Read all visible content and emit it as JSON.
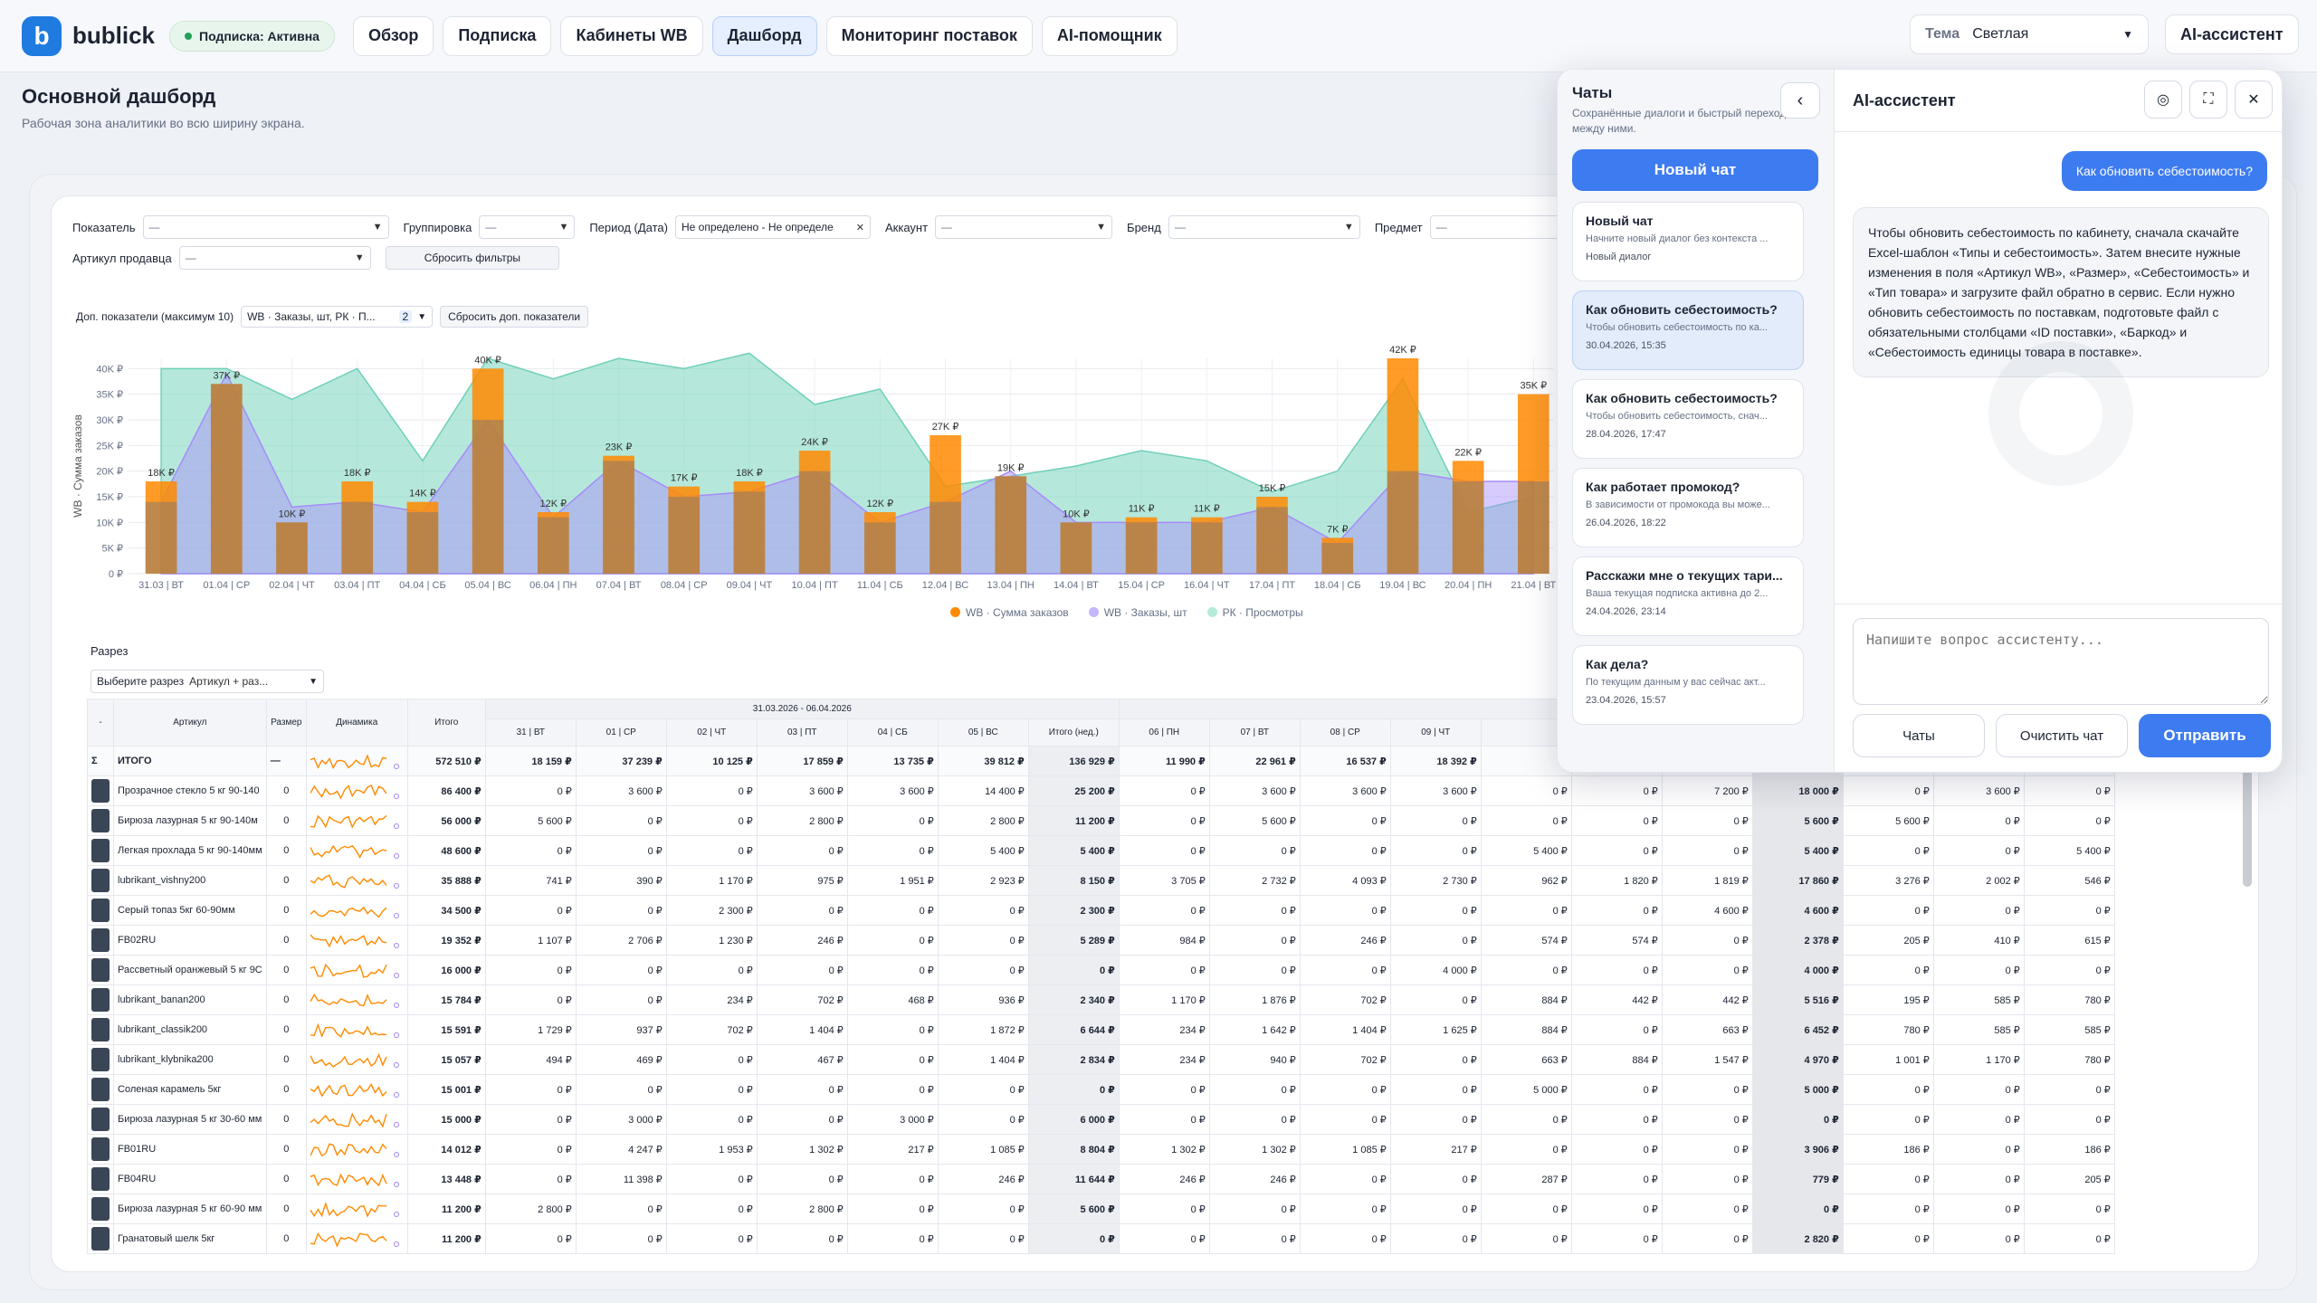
{
  "nav": {
    "brand": "bublick",
    "subscription": "Подписка: Активна",
    "items": [
      "Обзор",
      "Подписка",
      "Кабинеты WB",
      "Дашборд",
      "Мониторинг поставок",
      "AI-помощник"
    ],
    "theme_label": "Тема",
    "theme_value": "Светлая",
    "ai_button": "AI-ассистент"
  },
  "page": {
    "title": "Основной дашборд",
    "subtitle": "Рабочая зона аналитики во всю ширину экрана."
  },
  "filters": {
    "indicator": "Показатель",
    "grouping": "Группировка",
    "period": "Период (Дата)",
    "period_value": "Не определено - Не определе",
    "account": "Аккаунт",
    "brand": "Бренд",
    "subject": "Предмет",
    "seller_article": "Артикул продавца",
    "placeholder": "—",
    "reset": "Сбросить фильтры"
  },
  "extra": {
    "label": "Доп. показатели (максимум 10)",
    "value": "WB · Заказы, шт, РК · П...",
    "count": "2",
    "reset": "Сбросить доп. показатели"
  },
  "chart_data": {
    "type": "bar",
    "ylabel": "WB · Сумма заказов",
    "ylim": [
      0,
      42000
    ],
    "yticks": [
      "0 ₽",
      "5K ₽",
      "10K ₽",
      "15K ₽",
      "20K ₽",
      "25K ₽",
      "30K ₽",
      "35K ₽",
      "40K ₽"
    ],
    "categories": [
      "31.03 | ВТ",
      "01.04 | СР",
      "02.04 | ЧТ",
      "03.04 | ПТ",
      "04.04 | СБ",
      "05.04 | ВС",
      "06.04 | ПН",
      "07.04 | ВТ",
      "08.04 | СР",
      "09.04 | ЧТ",
      "10.04 | ПТ",
      "11.04 | СБ",
      "12.04 | ВС",
      "13.04 | ПН",
      "14.04 | ВТ",
      "15.04 | СР",
      "16.04 | ЧТ",
      "17.04 | ПТ",
      "18.04 | СБ",
      "19.04 | ВС",
      "20.04 | ПН",
      "21.04 | ВТ"
    ],
    "series": [
      {
        "name": "WB · Сумма заказов",
        "color": "#ff8a00",
        "values": [
          18000,
          37000,
          10000,
          18000,
          14000,
          40000,
          12000,
          23000,
          17000,
          18000,
          24000,
          12000,
          27000,
          19000,
          10000,
          11000,
          11000,
          15000,
          7000,
          42000,
          22000,
          35000
        ]
      },
      {
        "name": "WB · Заказы, шт",
        "color": "#a78bfa",
        "values": [
          14000,
          39000,
          13000,
          14000,
          12000,
          30000,
          11000,
          22000,
          15000,
          16000,
          20000,
          10000,
          14000,
          20000,
          10000,
          10000,
          10000,
          13000,
          6000,
          20000,
          18000,
          18000
        ]
      },
      {
        "name": "РК · Просмотры",
        "color": "#86dcc6",
        "values": [
          40000,
          40000,
          34000,
          40000,
          22000,
          42000,
          38000,
          42000,
          40000,
          43000,
          33000,
          36000,
          17000,
          19000,
          21000,
          24000,
          22000,
          16000,
          20000,
          38000,
          12000,
          15000
        ]
      }
    ],
    "data_labels": [
      "18K ₽",
      "37K ₽",
      "10K ₽",
      "18K ₽",
      "14K ₽",
      "40K ₽",
      "12K ₽",
      "23K ₽",
      "17K ₽",
      "18K ₽",
      "24K ₽",
      "12K ₽",
      "27K ₽",
      "19K ₽",
      "10K ₽",
      "11K ₽",
      "11K ₽",
      "15K ₽",
      "7K ₽",
      "42K ₽",
      "22K ₽",
      "35K ₽"
    ]
  },
  "razrez": {
    "label": "Разрез",
    "select": "Выберите разрез",
    "value": "Артикул + раз..."
  },
  "table": {
    "headers": [
      "-",
      "Артикул",
      "Размер",
      "Динамика",
      "Итого"
    ],
    "week1": "31.03.2026 - 06.04.2026",
    "week2": "06.04.2...",
    "days1": [
      "31 | ВТ",
      "01 | СР",
      "02 | ЧТ",
      "03 | ПТ",
      "04 | СБ",
      "05 | ВС"
    ],
    "mid_label": "Итого (нед.)",
    "days2": [
      "06 | ПН",
      "07 | ВТ",
      "08 | СР",
      "09 | ЧТ",
      "",
      "",
      ""
    ],
    "total_row": {
      "sigma": "Σ",
      "name": "ИТОГО",
      "size": "—",
      "total": "572 510 ₽",
      "d1": [
        "18 159 ₽",
        "37 239 ₽",
        "10 125 ₽",
        "17 859 ₽",
        "13 735 ₽",
        "39 812 ₽"
      ],
      "mid": "136 929 ₽",
      "d2": [
        "11 990 ₽",
        "22 961 ₽",
        "16 537 ₽",
        "18 392 ₽",
        "",
        "",
        ""
      ],
      "sum": "",
      "d3": [
        "",
        "",
        ""
      ]
    },
    "rows": [
      {
        "name": "Прозрачное стекло 5 кг 90-140",
        "size": "0",
        "total": "86 400 ₽",
        "d1": [
          "0 ₽",
          "3 600 ₽",
          "0 ₽",
          "3 600 ₽",
          "3 600 ₽",
          "14 400 ₽"
        ],
        "mid": "25 200 ₽",
        "d2": [
          "0 ₽",
          "3 600 ₽",
          "3 600 ₽",
          "3 600 ₽",
          "0 ₽",
          "0 ₽",
          "7 200 ₽"
        ],
        "sum": "18 000 ₽",
        "d3": [
          "0 ₽",
          "3 600 ₽",
          "0 ₽"
        ]
      },
      {
        "name": "Бирюза лазурная 5 кг 90-140м",
        "size": "0",
        "total": "56 000 ₽",
        "d1": [
          "5 600 ₽",
          "0 ₽",
          "0 ₽",
          "2 800 ₽",
          "0 ₽",
          "2 800 ₽"
        ],
        "mid": "11 200 ₽",
        "d2": [
          "0 ₽",
          "5 600 ₽",
          "0 ₽",
          "0 ₽",
          "0 ₽",
          "0 ₽",
          "0 ₽"
        ],
        "sum": "5 600 ₽",
        "d3": [
          "5 600 ₽",
          "0 ₽",
          "0 ₽"
        ]
      },
      {
        "name": "Легкая прохлада 5 кг 90-140мм",
        "size": "0",
        "total": "48 600 ₽",
        "d1": [
          "0 ₽",
          "0 ₽",
          "0 ₽",
          "0 ₽",
          "0 ₽",
          "5 400 ₽"
        ],
        "mid": "5 400 ₽",
        "d2": [
          "0 ₽",
          "0 ₽",
          "0 ₽",
          "0 ₽",
          "5 400 ₽",
          "0 ₽",
          "0 ₽"
        ],
        "sum": "5 400 ₽",
        "d3": [
          "0 ₽",
          "0 ₽",
          "5 400 ₽"
        ]
      },
      {
        "name": "lubrikant_vishny200",
        "size": "0",
        "total": "35 888 ₽",
        "d1": [
          "741 ₽",
          "390 ₽",
          "1 170 ₽",
          "975 ₽",
          "1 951 ₽",
          "2 923 ₽"
        ],
        "mid": "8 150 ₽",
        "d2": [
          "3 705 ₽",
          "2 732 ₽",
          "4 093 ₽",
          "2 730 ₽",
          "962 ₽",
          "1 820 ₽",
          "1 819 ₽"
        ],
        "sum": "17 860 ₽",
        "d3": [
          "3 276 ₽",
          "2 002 ₽",
          "546 ₽"
        ]
      },
      {
        "name": "Серый топаз 5кг 60-90мм",
        "size": "0",
        "total": "34 500 ₽",
        "d1": [
          "0 ₽",
          "0 ₽",
          "2 300 ₽",
          "0 ₽",
          "0 ₽",
          "0 ₽"
        ],
        "mid": "2 300 ₽",
        "d2": [
          "0 ₽",
          "0 ₽",
          "0 ₽",
          "0 ₽",
          "0 ₽",
          "0 ₽",
          "4 600 ₽"
        ],
        "sum": "4 600 ₽",
        "d3": [
          "0 ₽",
          "0 ₽",
          "0 ₽"
        ]
      },
      {
        "name": "FB02RU",
        "size": "0",
        "total": "19 352 ₽",
        "d1": [
          "1 107 ₽",
          "2 706 ₽",
          "1 230 ₽",
          "246 ₽",
          "0 ₽",
          "0 ₽"
        ],
        "mid": "5 289 ₽",
        "d2": [
          "984 ₽",
          "0 ₽",
          "246 ₽",
          "0 ₽",
          "574 ₽",
          "574 ₽",
          "0 ₽"
        ],
        "sum": "2 378 ₽",
        "d3": [
          "205 ₽",
          "410 ₽",
          "615 ₽"
        ]
      },
      {
        "name": "Рассветный оранжевый 5 кг 9С",
        "size": "0",
        "total": "16 000 ₽",
        "d1": [
          "0 ₽",
          "0 ₽",
          "0 ₽",
          "0 ₽",
          "0 ₽",
          "0 ₽"
        ],
        "mid": "0 ₽",
        "d2": [
          "0 ₽",
          "0 ₽",
          "0 ₽",
          "4 000 ₽",
          "0 ₽",
          "0 ₽",
          "0 ₽"
        ],
        "sum": "4 000 ₽",
        "d3": [
          "0 ₽",
          "0 ₽",
          "0 ₽"
        ]
      },
      {
        "name": "lubrikant_banan200",
        "size": "0",
        "total": "15 784 ₽",
        "d1": [
          "0 ₽",
          "0 ₽",
          "234 ₽",
          "702 ₽",
          "468 ₽",
          "936 ₽"
        ],
        "mid": "2 340 ₽",
        "d2": [
          "1 170 ₽",
          "1 876 ₽",
          "702 ₽",
          "0 ₽",
          "884 ₽",
          "442 ₽",
          "442 ₽"
        ],
        "sum": "5 516 ₽",
        "d3": [
          "195 ₽",
          "585 ₽",
          "780 ₽"
        ]
      },
      {
        "name": "lubrikant_classik200",
        "size": "0",
        "total": "15 591 ₽",
        "d1": [
          "1 729 ₽",
          "937 ₽",
          "702 ₽",
          "1 404 ₽",
          "0 ₽",
          "1 872 ₽"
        ],
        "mid": "6 644 ₽",
        "d2": [
          "234 ₽",
          "1 642 ₽",
          "1 404 ₽",
          "1 625 ₽",
          "884 ₽",
          "0 ₽",
          "663 ₽"
        ],
        "sum": "6 452 ₽",
        "d3": [
          "780 ₽",
          "585 ₽",
          "585 ₽"
        ]
      },
      {
        "name": "lubrikant_klybnika200",
        "size": "0",
        "total": "15 057 ₽",
        "d1": [
          "494 ₽",
          "469 ₽",
          "0 ₽",
          "467 ₽",
          "0 ₽",
          "1 404 ₽"
        ],
        "mid": "2 834 ₽",
        "d2": [
          "234 ₽",
          "940 ₽",
          "702 ₽",
          "0 ₽",
          "663 ₽",
          "884 ₽",
          "1 547 ₽"
        ],
        "sum": "4 970 ₽",
        "d3": [
          "1 001 ₽",
          "1 170 ₽",
          "780 ₽"
        ]
      },
      {
        "name": "Соленая карамель 5кг",
        "size": "0",
        "total": "15 001 ₽",
        "d1": [
          "0 ₽",
          "0 ₽",
          "0 ₽",
          "0 ₽",
          "0 ₽",
          "0 ₽"
        ],
        "mid": "0 ₽",
        "d2": [
          "0 ₽",
          "0 ₽",
          "0 ₽",
          "0 ₽",
          "5 000 ₽",
          "0 ₽",
          "0 ₽"
        ],
        "sum": "5 000 ₽",
        "d3": [
          "0 ₽",
          "0 ₽",
          "0 ₽"
        ]
      },
      {
        "name": "Бирюза лазурная 5 кг 30-60 мм",
        "size": "0",
        "total": "15 000 ₽",
        "d1": [
          "0 ₽",
          "3 000 ₽",
          "0 ₽",
          "0 ₽",
          "3 000 ₽",
          "0 ₽"
        ],
        "mid": "6 000 ₽",
        "d2": [
          "0 ₽",
          "0 ₽",
          "0 ₽",
          "0 ₽",
          "0 ₽",
          "0 ₽",
          "0 ₽"
        ],
        "sum": "0 ₽",
        "d3": [
          "0 ₽",
          "0 ₽",
          "0 ₽"
        ]
      },
      {
        "name": "FB01RU",
        "size": "0",
        "total": "14 012 ₽",
        "d1": [
          "0 ₽",
          "4 247 ₽",
          "1 953 ₽",
          "1 302 ₽",
          "217 ₽",
          "1 085 ₽"
        ],
        "mid": "8 804 ₽",
        "d2": [
          "1 302 ₽",
          "1 302 ₽",
          "1 085 ₽",
          "217 ₽",
          "0 ₽",
          "0 ₽",
          "0 ₽"
        ],
        "sum": "3 906 ₽",
        "d3": [
          "186 ₽",
          "0 ₽",
          "186 ₽"
        ]
      },
      {
        "name": "FB04RU",
        "size": "0",
        "total": "13 448 ₽",
        "d1": [
          "0 ₽",
          "11 398 ₽",
          "0 ₽",
          "0 ₽",
          "0 ₽",
          "246 ₽"
        ],
        "mid": "11 644 ₽",
        "d2": [
          "246 ₽",
          "246 ₽",
          "0 ₽",
          "0 ₽",
          "287 ₽",
          "0 ₽",
          "0 ₽"
        ],
        "sum": "779 ₽",
        "d3": [
          "0 ₽",
          "0 ₽",
          "205 ₽"
        ]
      },
      {
        "name": "Бирюза лазурная 5 кг 60-90 мм",
        "size": "0",
        "total": "11 200 ₽",
        "d1": [
          "2 800 ₽",
          "0 ₽",
          "0 ₽",
          "2 800 ₽",
          "0 ₽",
          "0 ₽"
        ],
        "mid": "5 600 ₽",
        "d2": [
          "0 ₽",
          "0 ₽",
          "0 ₽",
          "0 ₽",
          "0 ₽",
          "0 ₽",
          "0 ₽"
        ],
        "sum": "0 ₽",
        "d3": [
          "0 ₽",
          "0 ₽",
          "0 ₽"
        ]
      },
      {
        "name": "Гранатовый шелк 5кг",
        "size": "0",
        "total": "11 200 ₽",
        "d1": [
          "0 ₽",
          "0 ₽",
          "0 ₽",
          "0 ₽",
          "0 ₽",
          "0 ₽"
        ],
        "mid": "0 ₽",
        "d2": [
          "0 ₽",
          "0 ₽",
          "0 ₽",
          "0 ₽",
          "0 ₽",
          "0 ₽",
          "0 ₽"
        ],
        "sum": "2 820 ₽",
        "d3": [
          "0 ₽",
          "0 ₽",
          "0 ₽"
        ]
      }
    ]
  },
  "chats": {
    "title": "Чаты",
    "subtitle": "Сохранённые диалоги и быстрый переход между ними.",
    "new_chat": "Новый чат",
    "items": [
      {
        "title": "Новый чат",
        "preview": "Начните новый диалог без контекста ...",
        "date": "Новый диалог",
        "active": false
      },
      {
        "title": "Как обновить себестоимость?",
        "preview": "Чтобы обновить себестоимость по ка...",
        "date": "30.04.2026, 15:35",
        "active": true
      },
      {
        "title": "Как обновить себестоимость?",
        "preview": "Чтобы обновить себестоимость, снач...",
        "date": "28.04.2026, 17:47",
        "active": false
      },
      {
        "title": "Как работает промокод?",
        "preview": "В зависимости от промокода вы може...",
        "date": "26.04.2026, 18:22",
        "active": false
      },
      {
        "title": "Расскажи мне о текущих тари...",
        "preview": "Ваша текущая подписка активна до 2...",
        "date": "24.04.2026, 23:14",
        "active": false
      },
      {
        "title": "Как дела?",
        "preview": "По текущим данным у вас сейчас акт...",
        "date": "23.04.2026, 15:57",
        "active": false
      }
    ]
  },
  "assistant": {
    "title": "AI-ассистент",
    "user_message": "Как обновить себестоимость?",
    "reply": "Чтобы обновить себестоимость по кабинету, сначала скачайте Excel-шаблон «Типы и себестоимость». Затем внесите нужные изменения в поля «Артикул WB», «Размер», «Себестоимость» и «Тип товара» и загрузите файл обратно в сервис. Если нужно обновить себестоимость по поставкам, подготовьте файл с обязательными столбцами «ID поставки», «Баркод» и «Себестоимость единицы товара в поставке».",
    "input_placeholder": "Напишите вопрос ассистенту...",
    "chats_btn": "Чаты",
    "clear_btn": "Очистить чат",
    "send_btn": "Отправить"
  }
}
